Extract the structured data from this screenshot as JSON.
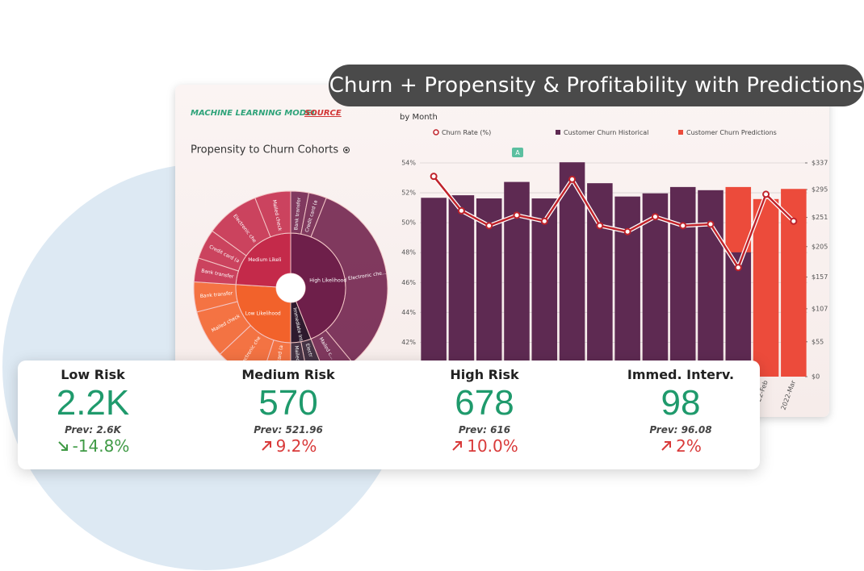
{
  "header": {
    "title": "Churn + Propensity & Profitability with Predictions",
    "source_label": "MACHINE LEARNING MODEL",
    "source_link": "SOURCE"
  },
  "chart_data": [
    {
      "type": "bar",
      "subtitle": "by Month",
      "annotation": "A",
      "categories": [
        null,
        null,
        null,
        null,
        null,
        null,
        null,
        null,
        null,
        null,
        null,
        null,
        "2022-Feb",
        "2022-Mar"
      ],
      "series": [
        {
          "name": "Churn Rate (%)",
          "type": "line",
          "axis": "y",
          "color": "#c0232b",
          "values": [
            53.1,
            50.8,
            49.8,
            50.5,
            50.1,
            52.9,
            49.8,
            49.4,
            50.4,
            49.8,
            49.9,
            47.0,
            51.9,
            50.1
          ]
        },
        {
          "name": "Customer Churn Historical",
          "type": "bar",
          "axis": "y2",
          "color": "#5e2a52",
          "values": [
            282,
            286,
            281,
            307,
            281,
            338,
            305,
            284,
            289,
            299,
            294,
            196,
            null,
            null
          ]
        },
        {
          "name": "Customer Churn Predictions",
          "type": "bar",
          "axis": "y2",
          "color": "#ec4b3b",
          "values": [
            null,
            null,
            null,
            null,
            null,
            null,
            null,
            null,
            null,
            null,
            null,
            299,
            280,
            296
          ]
        }
      ],
      "ylim": [
        39.7,
        54
      ],
      "yticks": [
        {
          "value": 42,
          "label": "42%"
        },
        {
          "value": 44,
          "label": "44%"
        },
        {
          "value": 46,
          "label": "46%"
        },
        {
          "value": 48,
          "label": "48%"
        },
        {
          "value": 50,
          "label": "50%"
        },
        {
          "value": 52,
          "label": "52%"
        },
        {
          "value": 54,
          "label": "54%"
        }
      ],
      "y2lim": [
        0,
        337
      ],
      "y2ticks": [
        {
          "value": 0,
          "label": "$0"
        },
        {
          "value": 55,
          "label": "$55"
        },
        {
          "value": 107,
          "label": "$107"
        },
        {
          "value": 157,
          "label": "$157"
        },
        {
          "value": 205,
          "label": "$205"
        },
        {
          "value": 251,
          "label": "$251"
        },
        {
          "value": 295,
          "label": "$295"
        },
        {
          "value": 337,
          "label": "$337"
        }
      ],
      "grid": true
    },
    {
      "type": "sunburst",
      "title": "Propensity to Churn Cohorts",
      "segments": [
        {
          "name": "High Likelihood",
          "value": 44,
          "color": "#6e1f4a",
          "children": [
            {
              "name": "Bank transfer",
              "value": 3
            },
            {
              "name": "Credit card (a",
              "value": 3
            },
            {
              "name": "Electronic che...",
              "value": 33
            },
            {
              "name": "Mailed c...",
              "value": 5
            }
          ]
        },
        {
          "name": "Immediate Int.",
          "value": 6,
          "color": "#2e1a2e",
          "children": [
            {
              "name": "Electr",
              "value": 3
            },
            {
              "name": "Mailed check",
              "value": 3
            }
          ]
        },
        {
          "name": "Low Likelihood",
          "value": 26,
          "color": "#f2622b",
          "children": [
            {
              "name": "Credit card (a",
              "value": 5
            },
            {
              "name": "Electronic che",
              "value": 8
            },
            {
              "name": "Mailed check",
              "value": 8
            },
            {
              "name": "Bank transfer",
              "value": 5
            }
          ]
        },
        {
          "name": "Medium Likeli",
          "value": 24,
          "color": "#c42a4a",
          "children": [
            {
              "name": "Bank transfer",
              "value": 4
            },
            {
              "name": "Credit card (a",
              "value": 5
            },
            {
              "name": "Electronic che",
              "value": 9
            },
            {
              "name": "Mailed check",
              "value": 6
            }
          ]
        }
      ]
    }
  ],
  "kpis": [
    {
      "title": "Low Risk",
      "value": "2.2K",
      "prev": "Prev: 2.6K",
      "change": "-14.8%",
      "trend": "down",
      "change_color": "#3f9a45"
    },
    {
      "title": "Medium Risk",
      "value": "570",
      "prev": "Prev: 521.96",
      "change": "9.2%",
      "trend": "up",
      "change_color": "#d93a3a"
    },
    {
      "title": "High Risk",
      "value": "678",
      "prev": "Prev: 616",
      "change": "10.0%",
      "trend": "up",
      "change_color": "#d93a3a"
    },
    {
      "title": "Immed. Interv.",
      "value": "98",
      "prev": "Prev: 96.08",
      "change": "2%",
      "trend": "up",
      "change_color": "#d93a3a"
    }
  ]
}
